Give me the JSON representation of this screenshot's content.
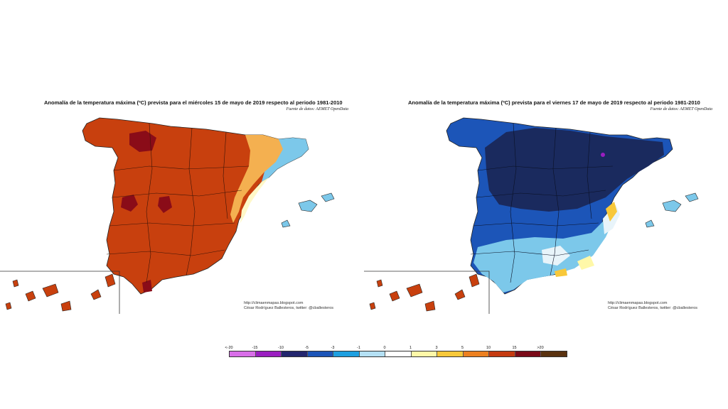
{
  "maps": [
    {
      "title": "Anomalía de la temperatura máxima (ºC) prevista para el miércoles 15 de mayo de 2019 respecto al periodo 1981-2010",
      "source": "Fuente de datos: AEMET OpenData",
      "credit_url": "http://climaenmapas.blogspot.com",
      "credit_author": "César Rodríguez Ballesteros, twitter: @cballesteros"
    },
    {
      "title": "Anomalía de la temperatura máxima (ºC) prevista para el viernes 17 de mayo de 2019 respecto al periodo 1981-2010",
      "source": "Fuente de datos: AEMET OpenData",
      "credit_url": "http://climaenmapas.blogspot.com",
      "credit_author": "César Rodríguez Ballesteros, twitter: @cballesteros"
    }
  ],
  "legend": {
    "tick_labels": [
      "<-20",
      "-15",
      "-10",
      "-5",
      "-3",
      "-1",
      "0",
      "1",
      "3",
      "5",
      "10",
      "15",
      ">20"
    ],
    "colors": [
      "#d86ee8",
      "#9a1ec0",
      "#23266e",
      "#1c55b8",
      "#1e9fe0",
      "#b4e0f4",
      "#ffffff",
      "#fff8a8",
      "#f8c83a",
      "#ec8020",
      "#c43a10",
      "#7a0a18",
      "#5a3210"
    ]
  }
}
